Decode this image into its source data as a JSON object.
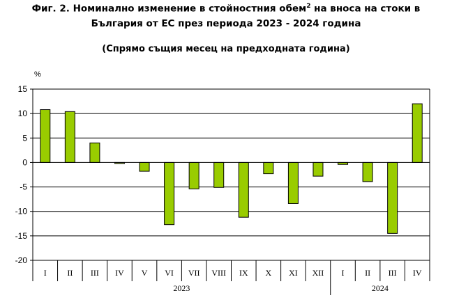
{
  "title": {
    "line1_before_sup": "Фиг. 2. Номинално изменение в стойностния обем",
    "sup": "2",
    "line1_after_sup": " на вноса на стоки в",
    "line2": "България от ЕС през периода 2023 - 2024 година",
    "subtitle": "(Спрямо същия месец на предходната година)"
  },
  "chart_data": {
    "type": "bar",
    "ylabel": "%",
    "ylim": [
      -20,
      15
    ],
    "yticks": [
      15,
      10,
      5,
      0,
      -5,
      -10,
      -15,
      -20
    ],
    "grid": true,
    "bar_color": "#99cc00",
    "categories": [
      "I",
      "II",
      "III",
      "IV",
      "V",
      "VI",
      "VII",
      "VIII",
      "IX",
      "X",
      "XI",
      "XII",
      "I",
      "II",
      "III",
      "IV"
    ],
    "values": [
      10.8,
      10.4,
      4.0,
      -0.2,
      -1.8,
      -12.7,
      -5.4,
      -5.1,
      -11.2,
      -2.3,
      -8.4,
      -2.8,
      -0.4,
      -3.9,
      -14.5,
      12.0
    ],
    "groups": [
      {
        "label": "2023",
        "count": 12
      },
      {
        "label": "2024",
        "count": 4
      }
    ]
  }
}
